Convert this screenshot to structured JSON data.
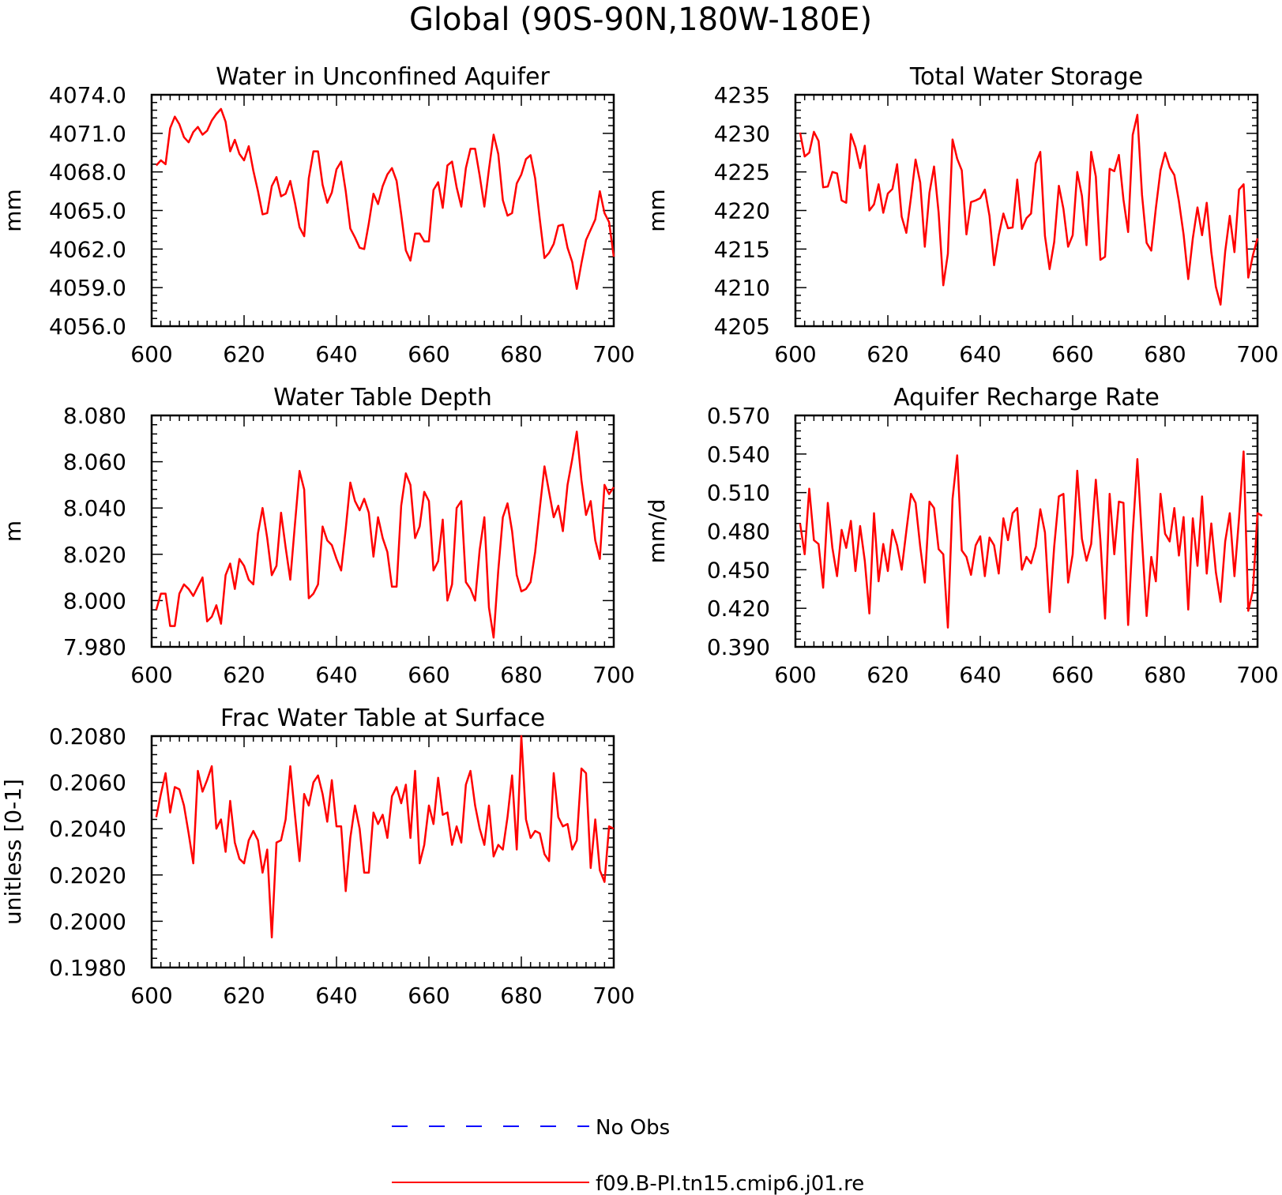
{
  "title": "Global (90S-90N,180W-180E)",
  "colors": {
    "model": "#ff0000",
    "obs": "#0000ff",
    "axis": "#000000"
  },
  "legend": {
    "entries": [
      {
        "label": "No Obs",
        "style": "dashed",
        "color": "#0000ff"
      },
      {
        "label": "f09.B-PI.tn15.cmip6.j01.re",
        "style": "solid",
        "color": "#ff0000"
      }
    ],
    "placement": "bottom-center"
  },
  "chart_data": [
    {
      "type": "line",
      "title": "Water in Unconfined Aquifer",
      "ylabel": "mm",
      "xlim": [
        600,
        700
      ],
      "ylim": [
        4056.0,
        4074.0
      ],
      "xticks": [
        600,
        620,
        640,
        660,
        680,
        700
      ],
      "yticks": [
        "4056.0",
        "4059.0",
        "4062.0",
        "4065.0",
        "4068.0",
        "4071.0",
        "4074.0"
      ],
      "x_start": 601,
      "series": [
        {
          "name": "f09.B-PI.tn15.cmip6.j01.re",
          "values": [
            4068.5,
            4068.9,
            4068.6,
            4071.4,
            4072.3,
            4071.7,
            4070.7,
            4070.3,
            4071.1,
            4071.5,
            4070.9,
            4071.2,
            4072.0,
            4072.5,
            4072.9,
            4071.9,
            4069.6,
            4070.5,
            4069.4,
            4068.9,
            4070.0,
            4068.1,
            4066.5,
            4064.7,
            4064.8,
            4066.9,
            4067.6,
            4066.1,
            4066.3,
            4067.3,
            4065.6,
            4063.7,
            4063.0,
            4067.5,
            4069.6,
            4069.6,
            4067.0,
            4065.6,
            4066.4,
            4068.2,
            4068.8,
            4066.5,
            4063.6,
            4062.9,
            4062.1,
            4062.0,
            4064.0,
            4066.3,
            4065.5,
            4066.9,
            4067.8,
            4068.3,
            4067.3,
            4064.7,
            4061.9,
            4061.1,
            4063.2,
            4063.2,
            4062.6,
            4062.6,
            4066.6,
            4067.2,
            4065.2,
            4068.5,
            4068.8,
            4066.8,
            4065.3,
            4068.3,
            4069.8,
            4069.8,
            4067.7,
            4065.3,
            4068.2,
            4070.9,
            4069.4,
            4065.8,
            4064.6,
            4064.8,
            4067.1,
            4067.8,
            4069.0,
            4069.3,
            4067.5,
            4064.3,
            4061.3,
            4061.7,
            4062.4,
            4063.8,
            4063.9,
            4062.1,
            4061.0,
            4058.9,
            4060.9,
            4062.7,
            4063.5,
            4064.3,
            4066.5,
            4064.8,
            4064.1,
            4061.4
          ]
        }
      ]
    },
    {
      "type": "line",
      "title": "Total Water Storage",
      "ylabel": "mm",
      "xlim": [
        600,
        700
      ],
      "ylim": [
        4205,
        4235
      ],
      "xticks": [
        600,
        620,
        640,
        660,
        680,
        700
      ],
      "yticks": [
        "4205",
        "4210",
        "4215",
        "4220",
        "4225",
        "4230",
        "4235"
      ],
      "x_start": 601,
      "series": [
        {
          "name": "f09.B-PI.tn15.cmip6.j01.re",
          "values": [
            4230.1,
            4227.0,
            4227.5,
            4230.2,
            4229.0,
            4223.0,
            4223.1,
            4225.0,
            4224.8,
            4221.3,
            4221.0,
            4229.9,
            4228.2,
            4225.5,
            4228.4,
            4220.0,
            4220.8,
            4223.4,
            4219.7,
            4222.2,
            4222.8,
            4226.0,
            4219.2,
            4217.1,
            4221.7,
            4226.6,
            4223.6,
            4215.3,
            4222.3,
            4225.7,
            4219.7,
            4210.3,
            4214.4,
            4229.2,
            4226.7,
            4225.2,
            4216.9,
            4221.1,
            4221.3,
            4221.6,
            4222.7,
            4219.3,
            4212.9,
            4216.8,
            4219.6,
            4217.7,
            4217.8,
            4224.0,
            4217.6,
            4219.0,
            4219.6,
            4226.1,
            4227.6,
            4216.7,
            4212.4,
            4215.9,
            4223.2,
            4220.2,
            4215.3,
            4216.8,
            4225.0,
            4221.9,
            4215.5,
            4227.6,
            4224.4,
            4213.6,
            4214.0,
            4225.4,
            4225.1,
            4227.2,
            4221.4,
            4217.2,
            4229.8,
            4232.4,
            4222.0,
            4215.8,
            4214.8,
            4220.3,
            4225.2,
            4227.5,
            4225.6,
            4224.6,
            4221.2,
            4216.9,
            4211.1,
            4216.4,
            4220.4,
            4216.8,
            4221.0,
            4214.6,
            4210.1,
            4207.8,
            4214.7,
            4219.3,
            4214.6,
            4222.7,
            4223.4,
            4211.3,
            4214.2,
            4216.4
          ]
        }
      ]
    },
    {
      "type": "line",
      "title": "Water Table Depth",
      "ylabel": "m",
      "xlim": [
        600,
        700
      ],
      "ylim": [
        7.98,
        8.08
      ],
      "xticks": [
        600,
        620,
        640,
        660,
        680,
        700
      ],
      "yticks": [
        "7.980",
        "8.000",
        "8.020",
        "8.040",
        "8.060",
        "8.080"
      ],
      "x_start": 601,
      "series": [
        {
          "name": "f09.B-PI.tn15.cmip6.j01.re",
          "values": [
            7.996,
            8.003,
            8.003,
            7.989,
            7.989,
            8.003,
            8.007,
            8.005,
            8.002,
            8.006,
            8.01,
            7.991,
            7.993,
            7.998,
            7.99,
            8.011,
            8.016,
            8.005,
            8.018,
            8.015,
            8.009,
            8.007,
            8.029,
            8.04,
            8.027,
            8.011,
            8.015,
            8.038,
            8.023,
            8.009,
            8.033,
            8.056,
            8.048,
            8.001,
            8.003,
            8.007,
            8.032,
            8.026,
            8.024,
            8.018,
            8.013,
            8.031,
            8.051,
            8.043,
            8.039,
            8.044,
            8.038,
            8.019,
            8.036,
            8.027,
            8.021,
            8.006,
            8.006,
            8.041,
            8.055,
            8.05,
            8.027,
            8.032,
            8.047,
            8.043,
            8.013,
            8.017,
            8.035,
            8.0,
            8.007,
            8.04,
            8.043,
            8.008,
            8.005,
            8.0,
            8.022,
            8.036,
            7.997,
            7.984,
            8.013,
            8.036,
            8.042,
            8.03,
            8.011,
            8.004,
            8.005,
            8.008,
            8.021,
            8.04,
            8.058,
            8.047,
            8.036,
            8.041,
            8.03,
            8.05,
            8.061,
            8.073,
            8.052,
            8.037,
            8.043,
            8.026,
            8.018,
            8.05,
            8.046,
            8.049
          ]
        }
      ]
    },
    {
      "type": "line",
      "title": "Aquifer Recharge Rate",
      "ylabel": "mm/d",
      "xlim": [
        600,
        700
      ],
      "ylim": [
        0.39,
        0.57
      ],
      "xticks": [
        600,
        620,
        640,
        660,
        680,
        700
      ],
      "yticks": [
        "0.390",
        "0.420",
        "0.450",
        "0.480",
        "0.510",
        "0.540",
        "0.570"
      ],
      "x_start": 601,
      "series": [
        {
          "name": "f09.B-PI.tn15.cmip6.j01.re",
          "values": [
            0.486,
            0.462,
            0.513,
            0.473,
            0.47,
            0.436,
            0.502,
            0.467,
            0.445,
            0.481,
            0.467,
            0.488,
            0.449,
            0.484,
            0.457,
            0.416,
            0.494,
            0.441,
            0.47,
            0.449,
            0.481,
            0.469,
            0.45,
            0.48,
            0.509,
            0.502,
            0.468,
            0.44,
            0.503,
            0.498,
            0.466,
            0.462,
            0.405,
            0.505,
            0.539,
            0.465,
            0.46,
            0.446,
            0.469,
            0.476,
            0.445,
            0.475,
            0.469,
            0.447,
            0.49,
            0.473,
            0.494,
            0.498,
            0.45,
            0.46,
            0.455,
            0.468,
            0.497,
            0.479,
            0.417,
            0.468,
            0.507,
            0.509,
            0.44,
            0.462,
            0.527,
            0.474,
            0.457,
            0.47,
            0.52,
            0.473,
            0.412,
            0.509,
            0.462,
            0.503,
            0.502,
            0.407,
            0.478,
            0.536,
            0.473,
            0.414,
            0.46,
            0.441,
            0.509,
            0.478,
            0.472,
            0.498,
            0.461,
            0.491,
            0.419,
            0.49,
            0.453,
            0.507,
            0.447,
            0.486,
            0.448,
            0.425,
            0.472,
            0.494,
            0.445,
            0.49,
            0.542,
            0.418,
            0.434,
            0.494,
            0.492
          ]
        }
      ]
    },
    {
      "type": "line",
      "title": "Frac Water Table at Surface",
      "ylabel": "unitless [0-1]",
      "xlim": [
        600,
        700
      ],
      "ylim": [
        0.198,
        0.208
      ],
      "xticks": [
        600,
        620,
        640,
        660,
        680,
        700
      ],
      "yticks": [
        "0.1980",
        "0.2000",
        "0.2020",
        "0.2040",
        "0.2060",
        "0.2080"
      ],
      "x_start": 601,
      "series": [
        {
          "name": "f09.B-PI.tn15.cmip6.j01.re",
          "values": [
            0.2045,
            0.2055,
            0.2064,
            0.2047,
            0.2058,
            0.2057,
            0.205,
            0.2038,
            0.2025,
            0.2065,
            0.2056,
            0.2061,
            0.2067,
            0.204,
            0.2044,
            0.203,
            0.2052,
            0.2034,
            0.2027,
            0.2025,
            0.2035,
            0.2039,
            0.2035,
            0.2021,
            0.2031,
            0.1993,
            0.2034,
            0.2035,
            0.2044,
            0.2067,
            0.2046,
            0.2026,
            0.2055,
            0.205,
            0.206,
            0.2063,
            0.2055,
            0.2043,
            0.2061,
            0.2041,
            0.2041,
            0.2013,
            0.2036,
            0.205,
            0.204,
            0.2021,
            0.2021,
            0.2047,
            0.2042,
            0.2046,
            0.2036,
            0.2054,
            0.2058,
            0.2051,
            0.2059,
            0.2036,
            0.2065,
            0.2025,
            0.2033,
            0.205,
            0.2042,
            0.2062,
            0.2046,
            0.2047,
            0.2033,
            0.2041,
            0.2034,
            0.2059,
            0.2065,
            0.205,
            0.204,
            0.2033,
            0.205,
            0.2028,
            0.2033,
            0.2031,
            0.2045,
            0.2063,
            0.2031,
            0.208,
            0.2044,
            0.2036,
            0.2039,
            0.2038,
            0.2029,
            0.2026,
            0.2064,
            0.2045,
            0.2041,
            0.2042,
            0.2031,
            0.2035,
            0.2066,
            0.2064,
            0.2023,
            0.2044,
            0.2022,
            0.2017,
            0.2041,
            0.204
          ]
        }
      ]
    }
  ]
}
